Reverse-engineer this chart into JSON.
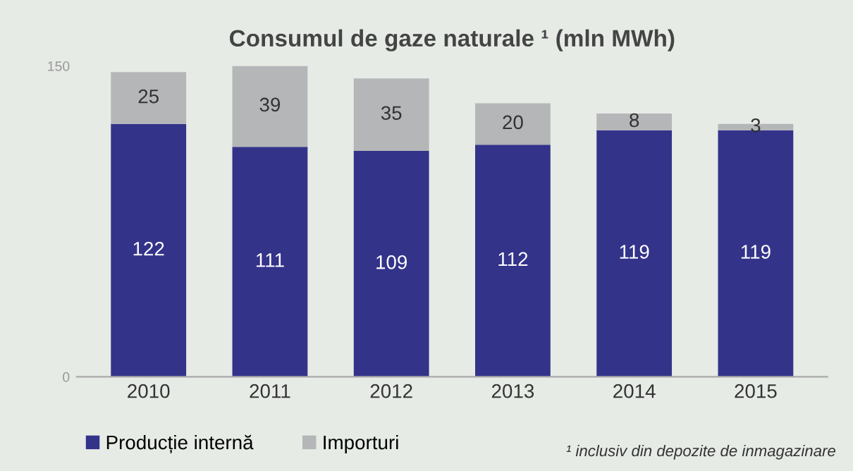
{
  "chart_data": {
    "type": "bar",
    "title": "Consumul de gaze naturale ¹ (mln MWh)",
    "categories": [
      "2010",
      "2011",
      "2012",
      "2013",
      "2014",
      "2015"
    ],
    "stacked": true,
    "data_labels": true,
    "legend": "bottom left",
    "grid": false,
    "ylim": [
      0,
      150
    ],
    "yticks": [
      0,
      150
    ],
    "series": [
      {
        "name": "Producție internă",
        "color": "#34338a",
        "values": [
          122,
          111,
          109,
          112,
          119,
          119
        ]
      },
      {
        "name": "Importuri",
        "color": "#b4b6b8",
        "values": [
          25,
          39,
          35,
          20,
          8,
          3
        ]
      }
    ],
    "annotations": [
      "¹ inclusiv din depozite de inmagazinare"
    ]
  }
}
